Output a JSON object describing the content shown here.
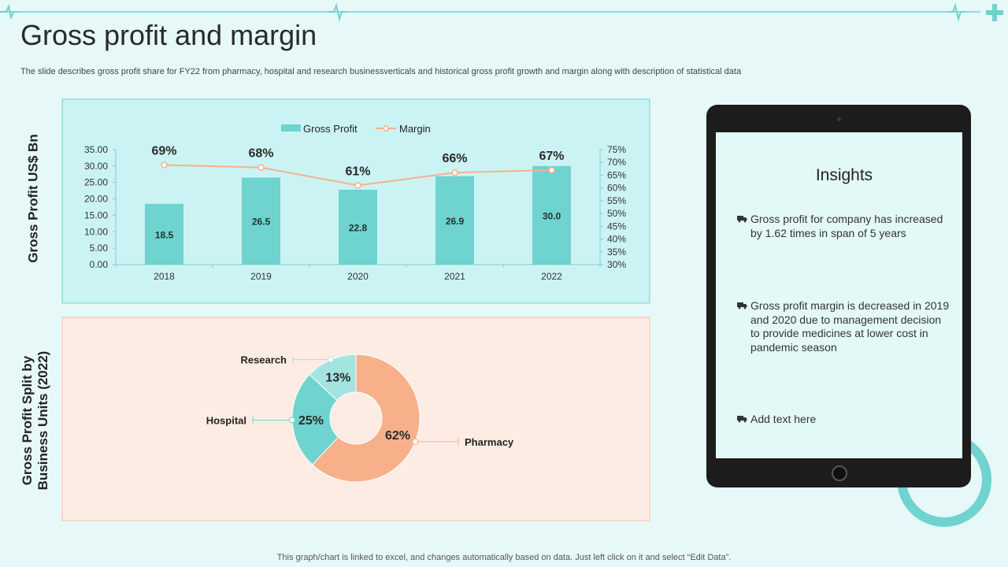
{
  "page": {
    "title": "Gross profit and margin",
    "subtitle": "The slide describes gross profit share for FY22 from pharmacy, hospital and research businessverticals and historical gross profit growth and margin along with description of statistical data",
    "footer": "This graph/chart is linked to excel,  and changes automatically based on data. Just left click on it and select “Edit Data”."
  },
  "colors": {
    "teal": "#6fd3cf",
    "orange": "#f7b08a",
    "tealLight": "#a3e4e1",
    "bg": "#e6f8f8"
  },
  "chart_data": [
    {
      "type": "bar",
      "title": "",
      "ylabel": "Gross Profit US$ Bn",
      "xlabel": "",
      "categories": [
        "2018",
        "2019",
        "2020",
        "2021",
        "2022"
      ],
      "ylim": [
        0,
        35
      ],
      "yticks": [
        "0.00",
        "5.00",
        "10.00",
        "15.00",
        "20.00",
        "25.00",
        "30.00",
        "35.00"
      ],
      "y2lim": [
        30,
        75
      ],
      "y2ticks": [
        "30%",
        "35%",
        "40%",
        "45%",
        "50%",
        "55%",
        "60%",
        "65%",
        "70%",
        "75%"
      ],
      "legend": [
        "Gross Profit",
        "Margin"
      ],
      "legend_position": "top-center",
      "series": [
        {
          "name": "Gross Profit",
          "type": "bar",
          "axis": "left",
          "values": [
            18.5,
            26.5,
            22.8,
            26.9,
            30.0
          ],
          "labels": [
            "18.5",
            "26.5",
            "22.8",
            "26.9",
            "30.0"
          ]
        },
        {
          "name": "Margin",
          "type": "line",
          "axis": "right",
          "values": [
            69,
            68,
            61,
            66,
            67
          ],
          "labels": [
            "69%",
            "68%",
            "61%",
            "66%",
            "67%"
          ]
        }
      ]
    },
    {
      "type": "pie",
      "title": "",
      "ylabel": "Gross Profit Split by Business Units (2022)",
      "categories": [
        "Pharmacy",
        "Hospital",
        "Research"
      ],
      "values": [
        62,
        25,
        13
      ],
      "labels": [
        "62%",
        "25%",
        "13%"
      ]
    }
  ],
  "insights": {
    "title": "Insights",
    "icon": "truck-icon",
    "items": [
      {
        "text": "Gross profit for company has increased by 1.62 times in span of 5 years"
      },
      {
        "text": "Gross profit margin is decreased in 2019 and 2020 due to management decision to provide medicines at lower cost in pandemic season"
      },
      {
        "text": "Add text here"
      }
    ]
  }
}
